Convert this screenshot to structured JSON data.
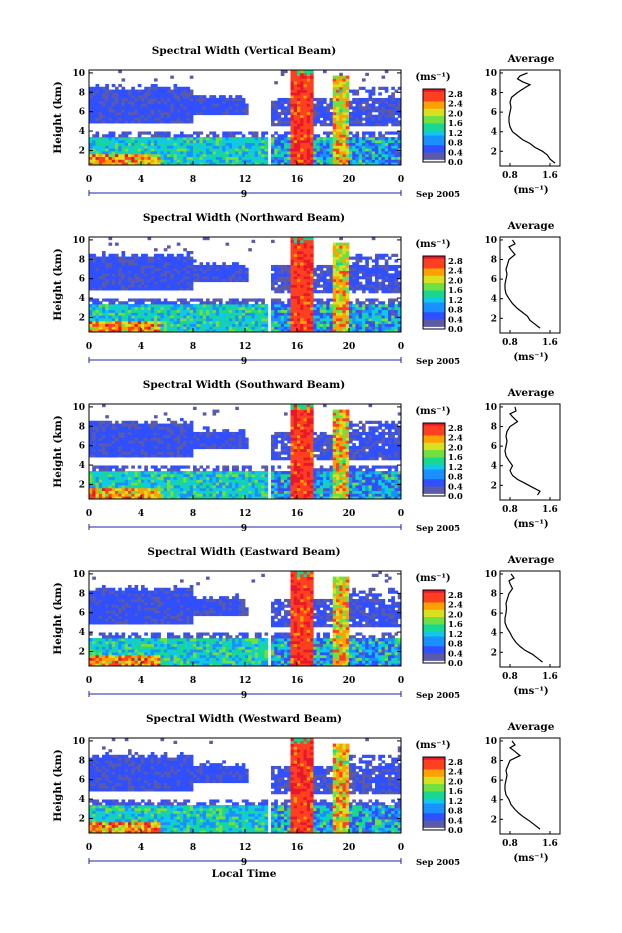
{
  "colors": {
    "background": "#ffffff",
    "axis": "#000000",
    "timeline": "#2222aa",
    "colorscale": [
      "#f8f8ff",
      "#5a5aa8",
      "#3050ff",
      "#1890ff",
      "#10c8e8",
      "#18d890",
      "#70e040",
      "#d8e020",
      "#ffa000",
      "#ff4020",
      "#e8182a"
    ]
  },
  "x_label": "Local Time",
  "chart_data": [
    {
      "type": "heatmap",
      "title": "Spectral Width (Vertical Beam)",
      "ylabel": "Height (km)",
      "xticks": [
        "0",
        "4",
        "8",
        "12",
        "16",
        "20",
        "0"
      ],
      "yticks": [
        "2",
        "4",
        "6",
        "8",
        "10"
      ],
      "xlim": [
        0,
        24
      ],
      "ylim": [
        0.5,
        10.3
      ],
      "day_label": "9",
      "date_label": "Sep 2005",
      "colorbar": {
        "unit": "(ms⁻¹)",
        "ticks": [
          "0.0",
          "0.4",
          "0.8",
          "1.2",
          "1.6",
          "2.0",
          "2.4",
          "2.8"
        ],
        "range": [
          0.0,
          3.0
        ]
      },
      "profile": {
        "title": "Average",
        "xlabel": "(ms⁻¹)",
        "xticks": [
          "0.8",
          "1.6"
        ],
        "yticks": [
          "2",
          "4",
          "6",
          "8",
          "10"
        ],
        "xlim": [
          0.6,
          1.8
        ],
        "ylim": [
          0.5,
          10.3
        ],
        "values": [
          [
            1.7,
            0.8
          ],
          [
            1.6,
            1.2
          ],
          [
            1.55,
            1.6
          ],
          [
            1.45,
            2.0
          ],
          [
            1.3,
            2.4
          ],
          [
            1.2,
            2.8
          ],
          [
            1.05,
            3.2
          ],
          [
            0.95,
            3.6
          ],
          [
            0.85,
            4.0
          ],
          [
            0.8,
            4.5
          ],
          [
            0.78,
            5.0
          ],
          [
            0.78,
            5.5
          ],
          [
            0.8,
            6.0
          ],
          [
            0.82,
            6.5
          ],
          [
            0.8,
            7.0
          ],
          [
            0.83,
            7.5
          ],
          [
            0.95,
            8.0
          ],
          [
            1.1,
            8.5
          ],
          [
            1.2,
            8.8
          ],
          [
            1.05,
            9.1
          ],
          [
            0.95,
            9.4
          ],
          [
            1.0,
            9.7
          ],
          [
            1.15,
            10.0
          ]
        ]
      }
    },
    {
      "type": "heatmap",
      "title": "Spectral Width (Northward Beam)",
      "ylabel": "Height (km)",
      "xticks": [
        "0",
        "4",
        "8",
        "12",
        "16",
        "20",
        "0"
      ],
      "yticks": [
        "2",
        "4",
        "6",
        "8",
        "10"
      ],
      "xlim": [
        0,
        24
      ],
      "ylim": [
        0.5,
        10.3
      ],
      "day_label": "9",
      "date_label": "Sep 2005",
      "colorbar": {
        "unit": "(ms⁻¹)",
        "ticks": [
          "0.0",
          "0.4",
          "0.8",
          "1.2",
          "1.6",
          "2.0",
          "2.4",
          "2.8"
        ],
        "range": [
          0.0,
          3.0
        ]
      },
      "profile": {
        "title": "Average",
        "xlabel": "(ms⁻¹)",
        "xticks": [
          "0.8",
          "1.6"
        ],
        "yticks": [
          "2",
          "4",
          "6",
          "8",
          "10"
        ],
        "xlim": [
          0.6,
          1.8
        ],
        "ylim": [
          0.5,
          10.3
        ],
        "values": [
          [
            1.4,
            1.0
          ],
          [
            1.3,
            1.4
          ],
          [
            1.2,
            1.8
          ],
          [
            1.15,
            2.2
          ],
          [
            1.05,
            2.6
          ],
          [
            0.95,
            3.0
          ],
          [
            0.85,
            3.5
          ],
          [
            0.78,
            4.0
          ],
          [
            0.72,
            4.5
          ],
          [
            0.7,
            5.0
          ],
          [
            0.7,
            5.5
          ],
          [
            0.72,
            6.0
          ],
          [
            0.74,
            6.5
          ],
          [
            0.72,
            7.0
          ],
          [
            0.75,
            7.5
          ],
          [
            0.78,
            8.0
          ],
          [
            0.9,
            8.5
          ],
          [
            0.82,
            9.0
          ],
          [
            0.78,
            9.3
          ],
          [
            0.9,
            9.6
          ],
          [
            0.85,
            10.0
          ]
        ]
      }
    },
    {
      "type": "heatmap",
      "title": "Spectral Width (Southward Beam)",
      "ylabel": "Height (km)",
      "xticks": [
        "0",
        "4",
        "8",
        "12",
        "16",
        "20",
        "0"
      ],
      "yticks": [
        "2",
        "4",
        "6",
        "8",
        "10"
      ],
      "xlim": [
        0,
        24
      ],
      "ylim": [
        0.5,
        10.3
      ],
      "day_label": "9",
      "date_label": "Sep 2005",
      "colorbar": {
        "unit": "(ms⁻¹)",
        "ticks": [
          "0.0",
          "0.4",
          "0.8",
          "1.2",
          "1.6",
          "2.0",
          "2.4",
          "2.8"
        ],
        "range": [
          0.0,
          3.0
        ]
      },
      "profile": {
        "title": "Average",
        "xlabel": "(ms⁻¹)",
        "xticks": [
          "0.8",
          "1.6"
        ],
        "yticks": [
          "2",
          "4",
          "6",
          "8",
          "10"
        ],
        "xlim": [
          0.6,
          1.8
        ],
        "ylim": [
          0.5,
          10.3
        ],
        "values": [
          [
            1.35,
            1.0
          ],
          [
            1.4,
            1.4
          ],
          [
            1.25,
            1.8
          ],
          [
            1.1,
            2.2
          ],
          [
            0.95,
            2.6
          ],
          [
            0.85,
            3.0
          ],
          [
            0.8,
            3.5
          ],
          [
            0.85,
            4.0
          ],
          [
            0.78,
            4.5
          ],
          [
            0.72,
            5.0
          ],
          [
            0.7,
            5.5
          ],
          [
            0.72,
            6.0
          ],
          [
            0.74,
            6.5
          ],
          [
            0.72,
            7.0
          ],
          [
            0.74,
            7.5
          ],
          [
            0.8,
            8.0
          ],
          [
            0.95,
            8.5
          ],
          [
            0.85,
            9.0
          ],
          [
            0.8,
            9.3
          ],
          [
            0.92,
            9.6
          ],
          [
            0.9,
            10.0
          ]
        ]
      }
    },
    {
      "type": "heatmap",
      "title": "Spectral Width (Eastward Beam)",
      "ylabel": "Height (km)",
      "xticks": [
        "0",
        "4",
        "8",
        "12",
        "16",
        "20",
        "0"
      ],
      "yticks": [
        "2",
        "4",
        "6",
        "8",
        "10"
      ],
      "xlim": [
        0,
        24
      ],
      "ylim": [
        0.5,
        10.3
      ],
      "day_label": "9",
      "date_label": "Sep 2005",
      "colorbar": {
        "unit": "(ms⁻¹)",
        "ticks": [
          "0.0",
          "0.4",
          "0.8",
          "1.2",
          "1.6",
          "2.0",
          "2.4",
          "2.8"
        ],
        "range": [
          0.0,
          3.0
        ]
      },
      "profile": {
        "title": "Average",
        "xlabel": "(ms⁻¹)",
        "xticks": [
          "0.8",
          "1.6"
        ],
        "yticks": [
          "2",
          "4",
          "6",
          "8",
          "10"
        ],
        "xlim": [
          0.6,
          1.8
        ],
        "ylim": [
          0.5,
          10.3
        ],
        "values": [
          [
            1.45,
            1.0
          ],
          [
            1.35,
            1.4
          ],
          [
            1.25,
            1.8
          ],
          [
            1.1,
            2.2
          ],
          [
            1.0,
            2.6
          ],
          [
            0.92,
            3.0
          ],
          [
            0.85,
            3.5
          ],
          [
            0.8,
            4.0
          ],
          [
            0.74,
            4.5
          ],
          [
            0.7,
            5.0
          ],
          [
            0.7,
            5.5
          ],
          [
            0.72,
            6.0
          ],
          [
            0.73,
            6.5
          ],
          [
            0.72,
            7.0
          ],
          [
            0.75,
            7.5
          ],
          [
            0.78,
            8.0
          ],
          [
            0.85,
            8.5
          ],
          [
            0.8,
            9.0
          ],
          [
            0.78,
            9.3
          ],
          [
            0.88,
            9.6
          ],
          [
            0.82,
            10.0
          ]
        ]
      }
    },
    {
      "type": "heatmap",
      "title": "Spectral Width (Westward Beam)",
      "ylabel": "Height (km)",
      "xticks": [
        "0",
        "4",
        "8",
        "12",
        "16",
        "20",
        "0"
      ],
      "yticks": [
        "2",
        "4",
        "6",
        "8",
        "10"
      ],
      "xlim": [
        0,
        24
      ],
      "ylim": [
        0.5,
        10.3
      ],
      "day_label": "9",
      "date_label": "Sep 2005",
      "colorbar": {
        "unit": "(ms⁻¹)",
        "ticks": [
          "0.0",
          "0.4",
          "0.8",
          "1.2",
          "1.6",
          "2.0",
          "2.4",
          "2.8"
        ],
        "range": [
          0.0,
          3.0
        ]
      },
      "profile": {
        "title": "Average",
        "xlabel": "(ms⁻¹)",
        "xticks": [
          "0.8",
          "1.6"
        ],
        "yticks": [
          "2",
          "4",
          "6",
          "8",
          "10"
        ],
        "xlim": [
          0.6,
          1.8
        ],
        "ylim": [
          0.5,
          10.3
        ],
        "values": [
          [
            1.4,
            1.0
          ],
          [
            1.3,
            1.4
          ],
          [
            1.2,
            1.8
          ],
          [
            1.08,
            2.2
          ],
          [
            0.98,
            2.6
          ],
          [
            0.9,
            3.0
          ],
          [
            0.82,
            3.5
          ],
          [
            0.78,
            4.0
          ],
          [
            0.72,
            4.5
          ],
          [
            0.7,
            5.0
          ],
          [
            0.7,
            5.5
          ],
          [
            0.72,
            6.0
          ],
          [
            0.74,
            6.5
          ],
          [
            0.72,
            7.0
          ],
          [
            0.76,
            7.5
          ],
          [
            0.8,
            8.0
          ],
          [
            1.0,
            8.5
          ],
          [
            0.88,
            9.0
          ],
          [
            0.8,
            9.3
          ],
          [
            0.9,
            9.6
          ],
          [
            0.84,
            10.0
          ]
        ]
      }
    }
  ]
}
